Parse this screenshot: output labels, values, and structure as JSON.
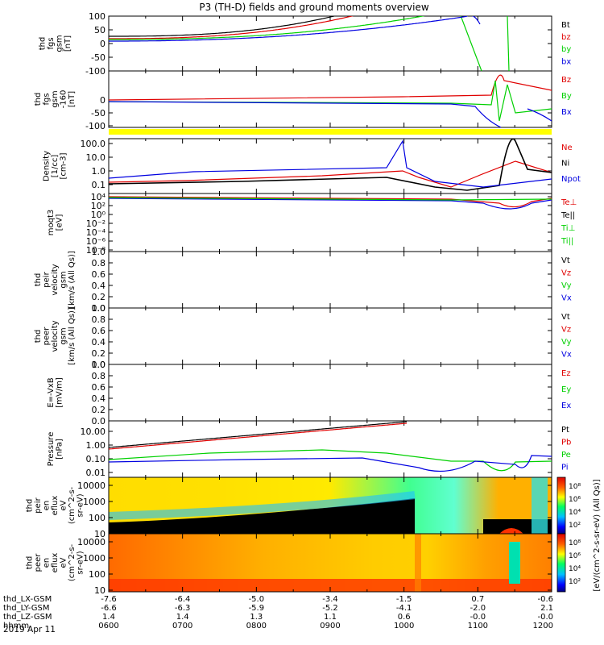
{
  "title": "P3 (TH-D) fields and ground moments overview",
  "date_label": "2019 Apr 11",
  "time_label": "hhmm",
  "colors": {
    "black": "#000000",
    "red": "#e00000",
    "green": "#00d000",
    "blue": "#0000e0",
    "yellow": "#ffff00"
  },
  "chart_data": [
    {
      "id": "fgs_gsm",
      "type": "line",
      "ylabel": [
        "thd",
        "fgs",
        "gsm",
        "[nT]"
      ],
      "ylim": [
        -100,
        100
      ],
      "yticks": [
        "100",
        "50",
        "0",
        "-50",
        "-100"
      ],
      "legend": [
        {
          "name": "Bt",
          "color": "#000000"
        },
        {
          "name": "bz",
          "color": "#e00000"
        },
        {
          "name": "by",
          "color": "#00d000"
        },
        {
          "name": "bx",
          "color": "#0000e0"
        }
      ]
    },
    {
      "id": "fgs_gsm_zoom",
      "type": "line",
      "ylabel": [
        "thd",
        "fgs",
        "gsm",
        "-160",
        "[nT]"
      ],
      "ylim": [
        -130,
        30
      ],
      "yticks": [
        "0",
        "-50",
        "-100"
      ],
      "legend": [
        {
          "name": "Bz",
          "color": "#e00000"
        },
        {
          "name": "By",
          "color": "#00d000"
        },
        {
          "name": "Bx",
          "color": "#0000e0"
        }
      ]
    },
    {
      "id": "density",
      "type": "line",
      "scale": "log",
      "ylabel": [
        "Density",
        "[1/cc]",
        "[cm-3]"
      ],
      "ylim": [
        0.03,
        200
      ],
      "yticks": [
        "100.0",
        "10.0",
        "1.0",
        "0.1"
      ],
      "legend": [
        {
          "name": "Ne",
          "color": "#e00000"
        },
        {
          "name": "Ni",
          "color": "#000000"
        },
        {
          "name": "Npot",
          "color": "#0000e0"
        }
      ]
    },
    {
      "id": "temperature",
      "type": "line",
      "scale": "log",
      "ylabel": [
        "moqt3",
        "[eV]"
      ],
      "yticks": [
        "10⁴",
        "10²",
        "10⁰",
        "10⁻²",
        "10⁻⁴",
        "10⁻⁶",
        "10⁻⁸"
      ],
      "legend": [
        {
          "name": "Te⊥",
          "color": "#e00000"
        },
        {
          "name": "Te||",
          "color": "#000000"
        },
        {
          "name": "Ti⊥",
          "color": "#00d000"
        },
        {
          "name": "Ti||",
          "color": "#00d000"
        }
      ]
    },
    {
      "id": "peir_velocity",
      "type": "line",
      "ylabel": [
        "thd",
        "peir",
        "velocity",
        "gsm",
        "[km/s (All Qs)]"
      ],
      "ylim": [
        0,
        1
      ],
      "yticks": [
        "1.0",
        "0.8",
        "0.6",
        "0.4",
        "0.2",
        "0.0"
      ],
      "legend": [
        {
          "name": "Vt",
          "color": "#000000"
        },
        {
          "name": "Vz",
          "color": "#e00000"
        },
        {
          "name": "Vy",
          "color": "#00d000"
        },
        {
          "name": "Vx",
          "color": "#0000e0"
        }
      ]
    },
    {
      "id": "peer_velocity",
      "type": "line",
      "ylabel": [
        "thd",
        "peer",
        "velocity",
        "gsm",
        "[km/s (All Qs)]"
      ],
      "ylim": [
        0,
        1
      ],
      "yticks": [
        "1.0",
        "0.8",
        "0.6",
        "0.4",
        "0.2",
        "0.0"
      ],
      "legend": [
        {
          "name": "Vt",
          "color": "#000000"
        },
        {
          "name": "Vz",
          "color": "#e00000"
        },
        {
          "name": "Vy",
          "color": "#00d000"
        },
        {
          "name": "Vx",
          "color": "#0000e0"
        }
      ]
    },
    {
      "id": "efield",
      "type": "line",
      "ylabel": [
        "E=-VxB",
        "[mV/m]"
      ],
      "ylim": [
        0,
        1
      ],
      "yticks": [
        "1.0",
        "0.8",
        "0.6",
        "0.4",
        "0.2",
        "0.0"
      ],
      "legend": [
        {
          "name": "Ez",
          "color": "#e00000"
        },
        {
          "name": "Ey",
          "color": "#00d000"
        },
        {
          "name": "Ex",
          "color": "#0000e0"
        }
      ]
    },
    {
      "id": "pressure",
      "type": "line",
      "scale": "log",
      "ylabel": [
        "Pressure",
        "[nPa]"
      ],
      "ylim": [
        0.005,
        20
      ],
      "yticks": [
        "10.00",
        "1.00",
        "0.10",
        "0.01"
      ],
      "legend": [
        {
          "name": "Pt",
          "color": "#000000"
        },
        {
          "name": "Pb",
          "color": "#e00000"
        },
        {
          "name": "Pe",
          "color": "#00d000"
        },
        {
          "name": "Pi",
          "color": "#0000e0"
        }
      ]
    },
    {
      "id": "peir_spectrogram",
      "type": "heatmap",
      "scale": "log",
      "ylabel": [
        "thd",
        "peir",
        "en",
        "eflux",
        "eV",
        "(cm^2-s-",
        "sr-eV)"
      ],
      "ylim": [
        5,
        20000
      ],
      "yticks": [
        "10000",
        "1000",
        "100",
        "10"
      ],
      "colorbar_ticks": [
        "10⁸",
        "10⁶",
        "10⁴",
        "10²"
      ]
    },
    {
      "id": "peer_spectrogram",
      "type": "heatmap",
      "scale": "log",
      "ylabel": [
        "thd",
        "peer",
        "en",
        "eflux",
        "eV",
        "(cm^2-s-",
        "sr-eV)"
      ],
      "ylim": [
        5,
        20000
      ],
      "yticks": [
        "10000",
        "1000",
        "100",
        "10"
      ],
      "colorbar_ticks": [
        "10⁸",
        "10⁶",
        "10⁴",
        "10²"
      ]
    }
  ],
  "colorbar_label": "[eV/(cm^2-s-sr-eV) (All Qs)]",
  "x_axis": {
    "rows": [
      {
        "label": "thd_LX-GSM",
        "values": [
          "-7.6",
          "-6.4",
          "-5.0",
          "-3.4",
          "-1.5",
          "0.7",
          "-0.6"
        ]
      },
      {
        "label": "thd_LY-GSM",
        "values": [
          "-6.6",
          "-6.3",
          "-5.9",
          "-5.2",
          "-4.1",
          "-2.0",
          "2.1"
        ]
      },
      {
        "label": "thd_LZ-GSM",
        "values": [
          "1.4",
          "1.4",
          "1.3",
          "1.1",
          "0.6",
          "-0.0",
          "-0.0"
        ]
      },
      {
        "label": "hhmm",
        "values": [
          "0600",
          "0700",
          "0800",
          "0900",
          "1000",
          "1100",
          "1200"
        ]
      }
    ],
    "time_hours": [
      6,
      7,
      8,
      9,
      10,
      11,
      12
    ],
    "xlim": [
      6,
      12
    ]
  }
}
